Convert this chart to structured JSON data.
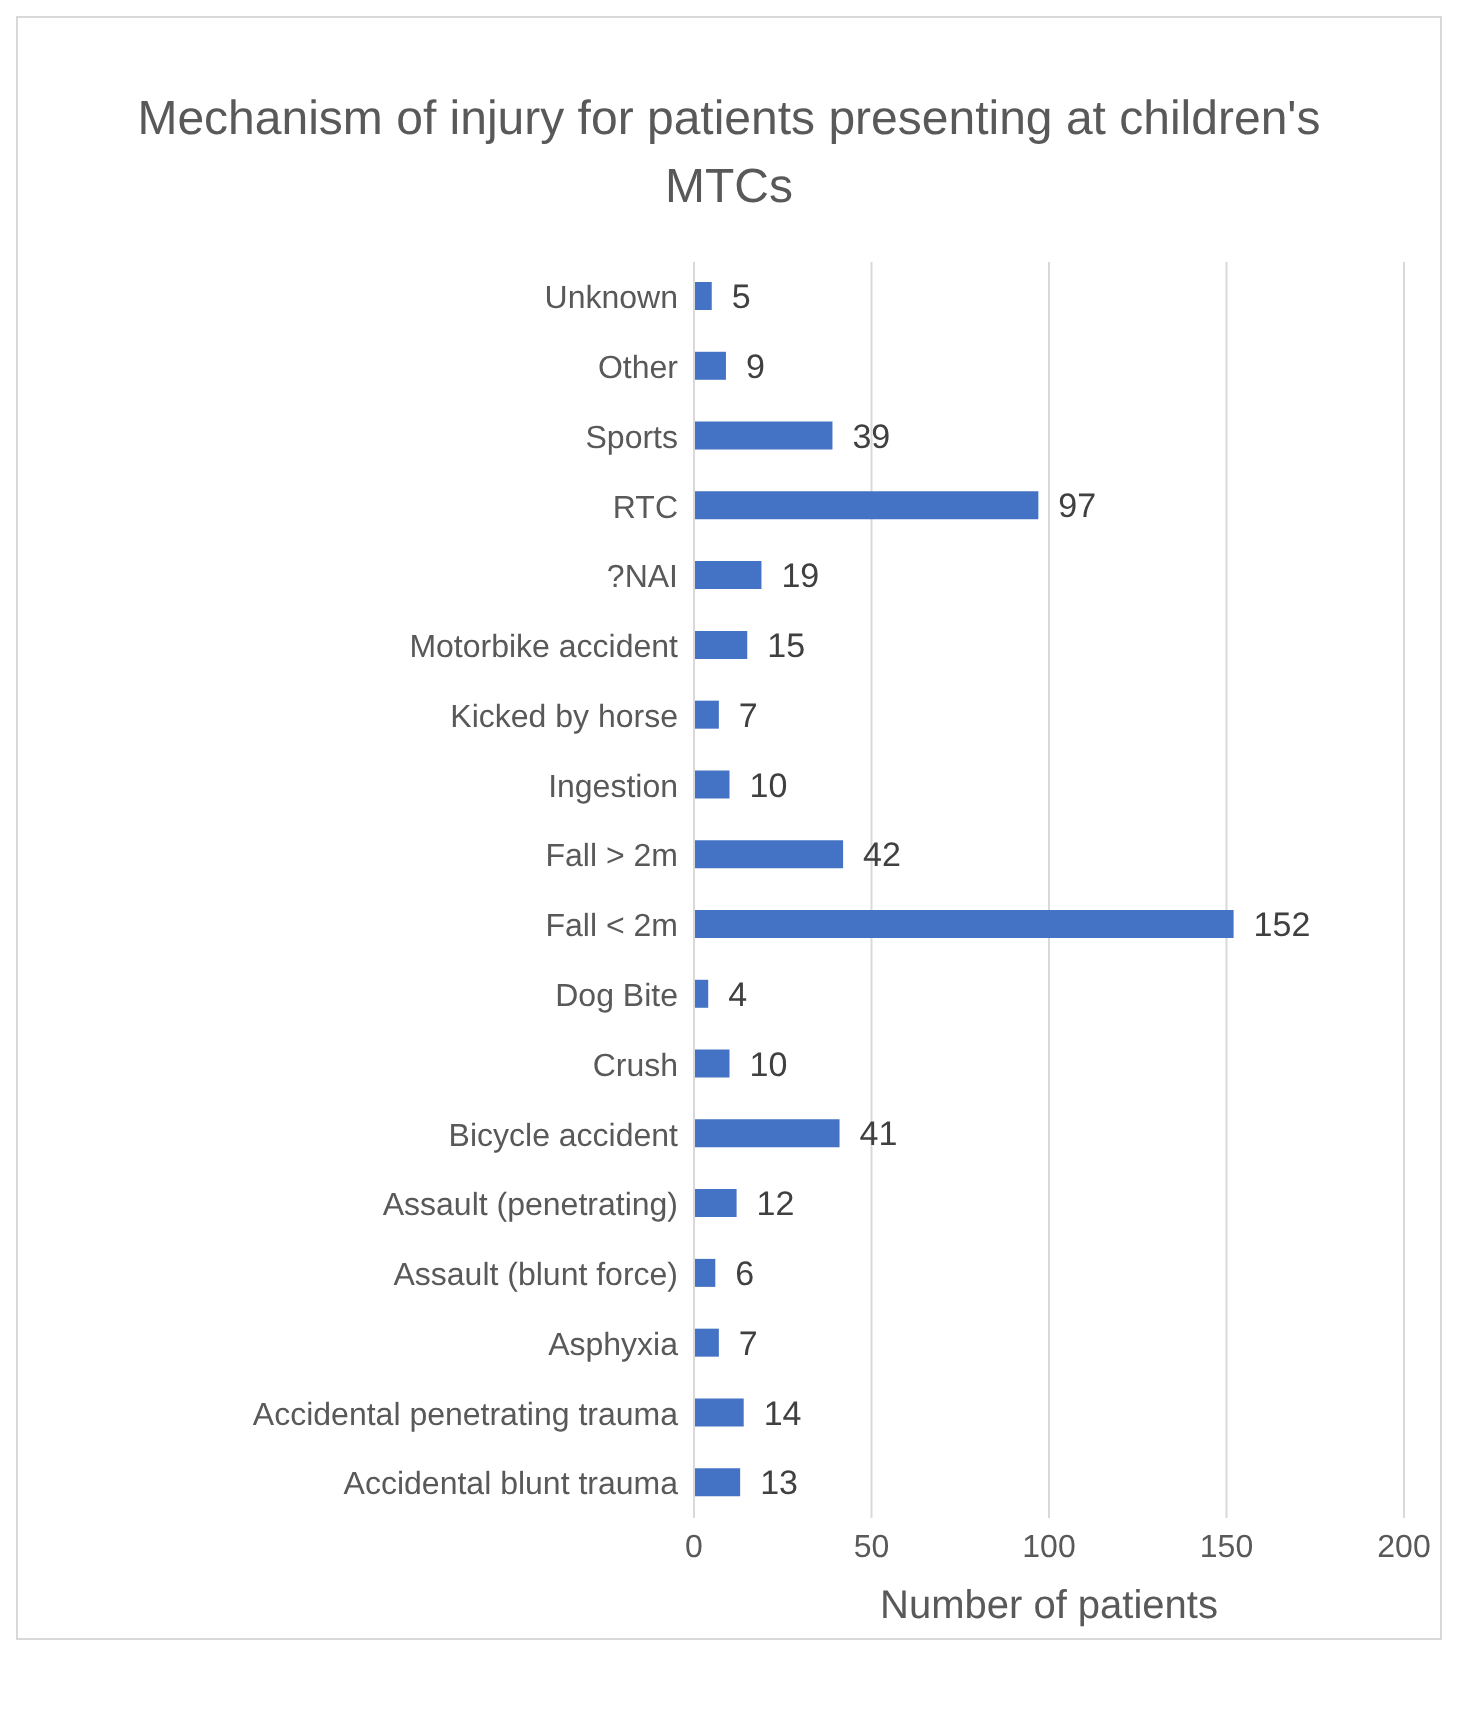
{
  "chart_data": {
    "type": "bar",
    "orientation": "horizontal",
    "title": "Mechanism of injury for patients presenting at children's MTCs",
    "xlabel": "Number of patients",
    "categories": [
      "Unknown",
      "Other",
      "Sports",
      "RTC",
      "?NAI",
      "Motorbike accident",
      "Kicked by horse",
      "Ingestion",
      "Fall > 2m",
      "Fall < 2m",
      "Dog Bite",
      "Crush",
      "Bicycle accident",
      "Assault (penetrating)",
      "Assault (blunt force)",
      "Asphyxia",
      "Accidental penetrating trauma",
      "Accidental blunt trauma"
    ],
    "values": [
      5,
      9,
      39,
      97,
      19,
      15,
      7,
      10,
      42,
      152,
      4,
      10,
      41,
      12,
      6,
      7,
      14,
      13
    ],
    "color": "#4472c4",
    "xlim": [
      0,
      200
    ],
    "xticks": [
      0,
      50,
      100,
      150,
      200
    ],
    "grid": "x",
    "data_labels": true
  }
}
